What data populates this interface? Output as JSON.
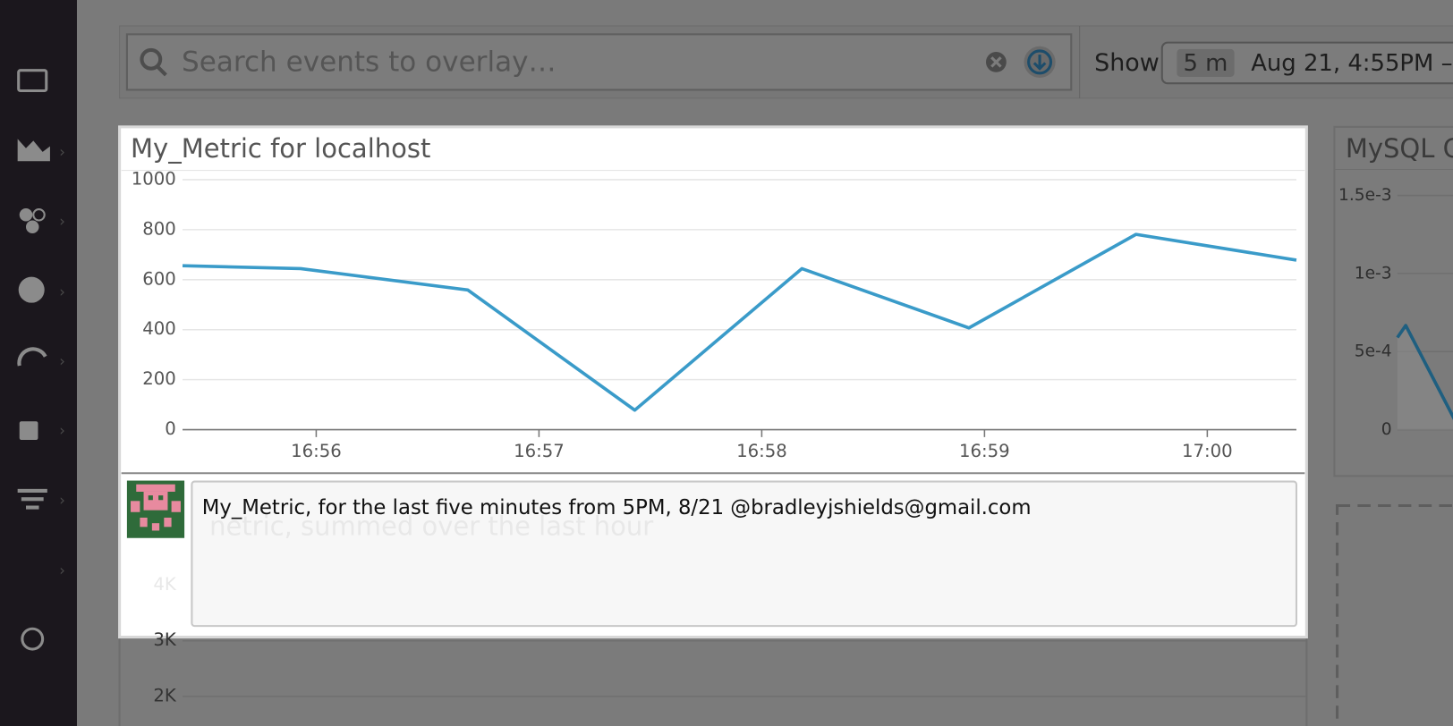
{
  "top_bar": {
    "search_placeholder": "Search events to overlay…",
    "show_label": "Show",
    "span": "5 m",
    "range": "Aug 21, 4:55PM –"
  },
  "chart_data": [
    {
      "type": "line",
      "title": "My_Metric for localhost",
      "x": [
        55.4,
        55.93,
        56.68,
        57.43,
        58.18,
        58.93,
        59.68,
        60.4
      ],
      "values": [
        656,
        644,
        559,
        78,
        644,
        407,
        781,
        678
      ],
      "color": "#3a9bc9",
      "xlim": [
        55.4,
        60.4
      ],
      "xticks": [
        {
          "value": 56,
          "label": "16:56"
        },
        {
          "value": 57,
          "label": "16:57"
        },
        {
          "value": 58,
          "label": "16:58"
        },
        {
          "value": 59,
          "label": "16:59"
        },
        {
          "value": 60,
          "label": "17:00"
        }
      ],
      "ylim": [
        0,
        1000
      ],
      "yticks": [
        0,
        200,
        400,
        600,
        800,
        1000
      ],
      "grid": true
    },
    {
      "type": "line",
      "title": "MySQL C",
      "x": [
        0,
        1,
        7
      ],
      "values": [
        0.00059,
        0.000667,
        5e-05
      ],
      "color": "#1f5f80",
      "xlim": [
        0,
        7
      ],
      "ylim": [
        0,
        0.0015
      ],
      "yticks": [
        {
          "value": 0.0015,
          "label": "1.5e-3"
        },
        {
          "value": 0.001,
          "label": "1e-3"
        },
        {
          "value": 0.0005,
          "label": "5e-4"
        },
        0
      ],
      "grid": true
    },
    {
      "type": "line",
      "title": "netric, summed over the last hour",
      "ylim": [
        2000,
        4000
      ],
      "yticks": [
        {
          "value": 4000,
          "label": "4K"
        },
        {
          "value": 3000,
          "label": "3K"
        },
        {
          "value": 2000,
          "label": "2K"
        }
      ],
      "grid": true
    }
  ],
  "comment": {
    "text": "My_Metric, for the last five minutes from 5PM, 8/21 @bradleyjshields@gmail.com"
  }
}
